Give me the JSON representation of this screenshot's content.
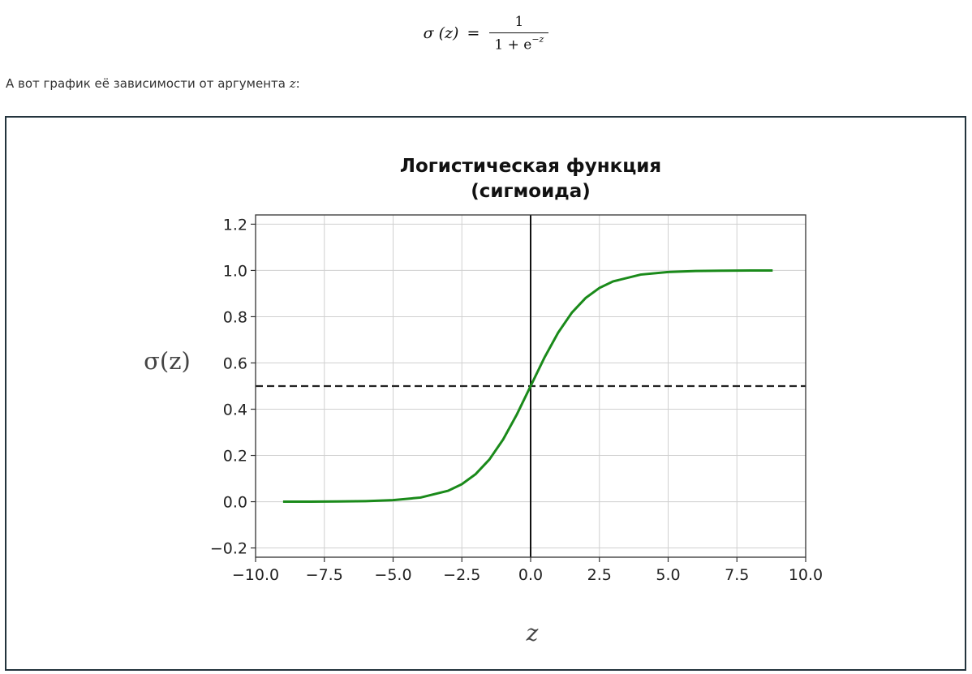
{
  "formula": {
    "lhs": "σ (z)",
    "equals": "=",
    "numerator": "1",
    "denominator_base": "1 + e",
    "denominator_exponent": "−z"
  },
  "intro": {
    "text": "А вот график её зависимости от аргумента ",
    "variable": "z",
    "suffix": ":"
  },
  "chart_data": {
    "type": "line",
    "title_lines": [
      "Логистическая функция",
      "(сигмоида)"
    ],
    "xlabel": "z",
    "ylabel": "σ(z)",
    "xlim": [
      -10,
      10
    ],
    "ylim": [
      -0.24,
      1.24
    ],
    "xticks": [
      -10,
      -7.5,
      -5,
      -2.5,
      0,
      2.5,
      5,
      7.5,
      10
    ],
    "xtick_labels": [
      "−10.0",
      "−7.5",
      "−5.0",
      "−2.5",
      "0.0",
      "2.5",
      "5.0",
      "7.5",
      "10.0"
    ],
    "yticks": [
      -0.2,
      0,
      0.2,
      0.4,
      0.6,
      0.8,
      1.0,
      1.2
    ],
    "ytick_labels": [
      "−0.2",
      "0.0",
      "0.2",
      "0.4",
      "0.6",
      "0.8",
      "1.0",
      "1.2"
    ],
    "grid": true,
    "series": [
      {
        "style": "solid",
        "color": "#1a8a1a",
        "x": [
          -9,
          -8,
          -7,
          -6,
          -5,
          -4,
          -3,
          -2.5,
          -2,
          -1.5,
          -1,
          -0.5,
          0,
          0.5,
          1,
          1.5,
          2,
          2.5,
          3,
          4,
          5,
          6,
          7,
          8,
          8.8
        ],
        "y": [
          0.0001,
          0.0003,
          0.0009,
          0.0025,
          0.0067,
          0.018,
          0.0474,
          0.0759,
          0.1192,
          0.1824,
          0.2689,
          0.3775,
          0.5,
          0.6225,
          0.7311,
          0.8176,
          0.8808,
          0.9241,
          0.9526,
          0.982,
          0.9933,
          0.9975,
          0.9991,
          0.9997,
          0.9998
        ]
      }
    ],
    "reference_lines": [
      {
        "orientation": "horizontal",
        "value": 0.5,
        "style": "dashed",
        "color": "#222222"
      },
      {
        "orientation": "vertical",
        "value": 0,
        "style": "solid",
        "color": "#111111"
      }
    ]
  }
}
